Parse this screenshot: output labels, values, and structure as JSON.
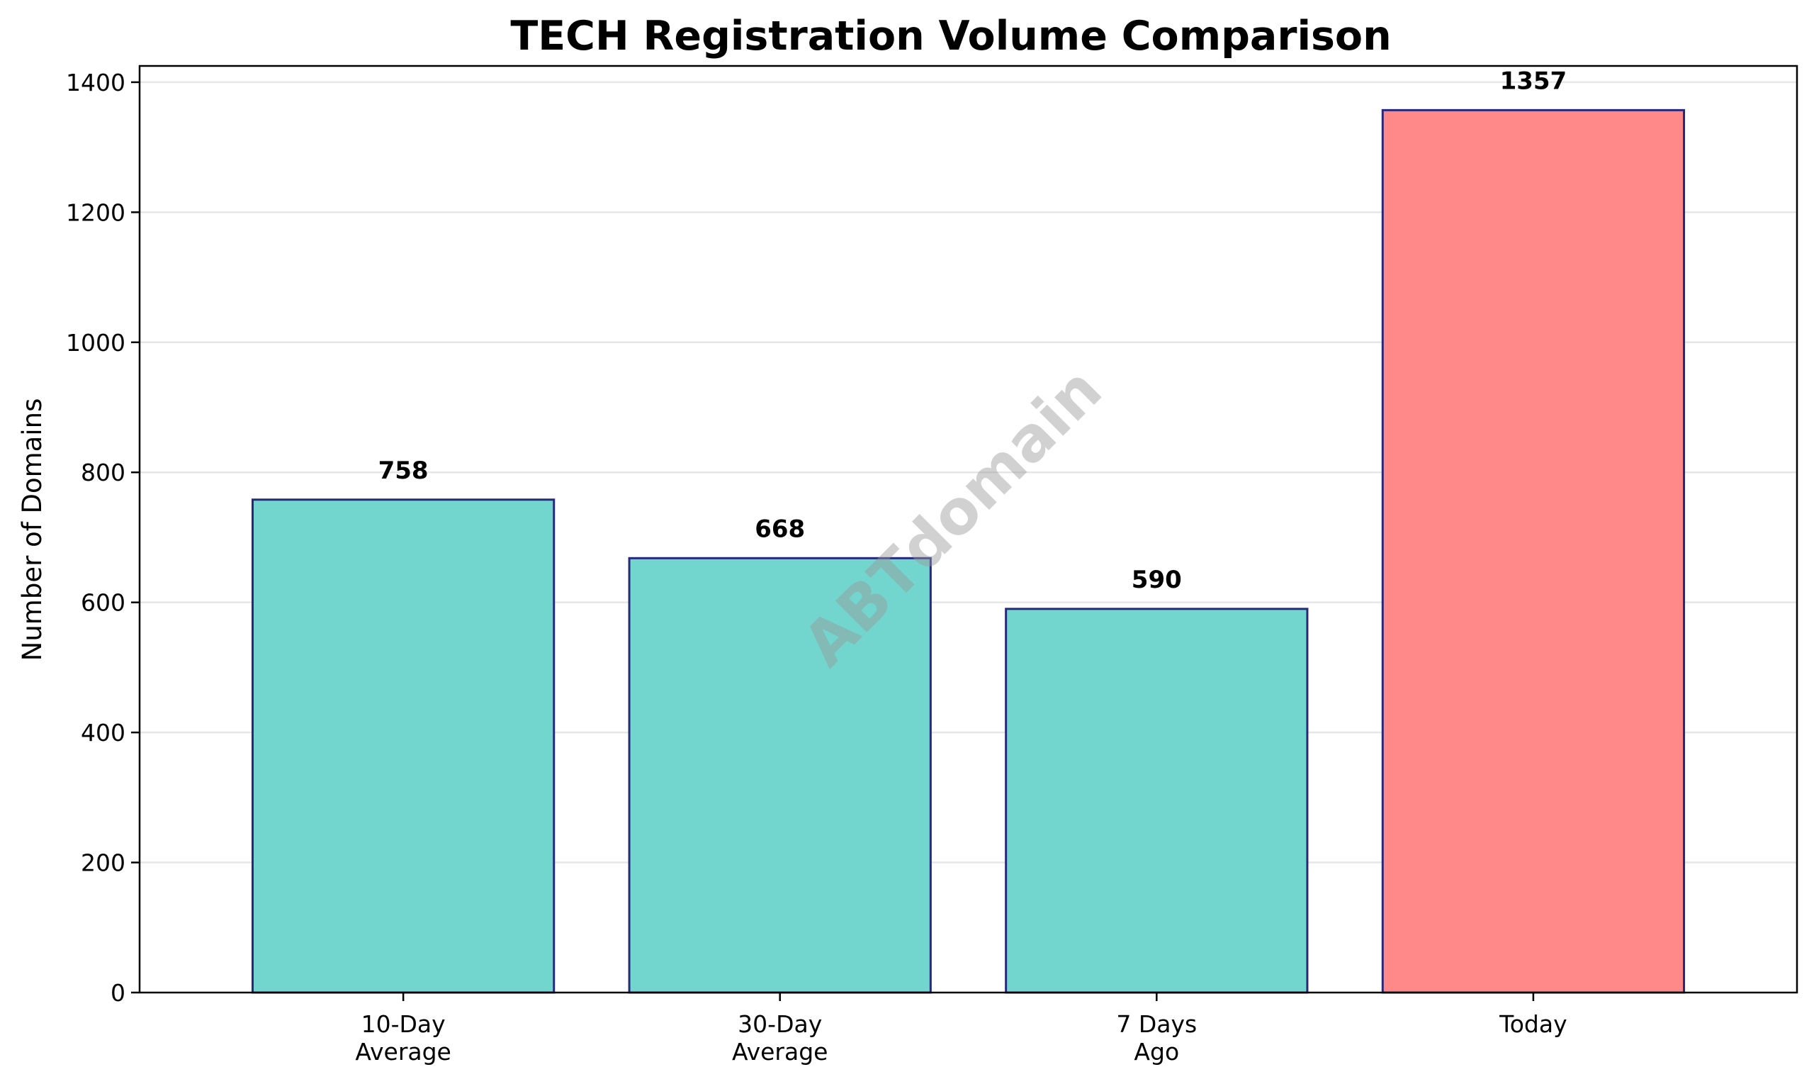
{
  "chart_data": {
    "type": "bar",
    "title": "TECH Registration Volume Comparison",
    "xlabel": "",
    "ylabel": "Number of Domains",
    "categories": [
      [
        "10-Day",
        "Average"
      ],
      [
        "30-Day",
        "Average"
      ],
      [
        "7 Days",
        "Ago"
      ],
      [
        "Today"
      ]
    ],
    "values": [
      758,
      668,
      590,
      1357
    ],
    "value_labels": [
      "758",
      "668",
      "590",
      "1357"
    ],
    "bar_colors": [
      "#72d5ce",
      "#72d5ce",
      "#72d5ce",
      "#ff8888"
    ],
    "bar_edge_color": "#27297a",
    "ylim": [
      0,
      1425
    ],
    "yticks": [
      0,
      200,
      400,
      600,
      800,
      1000,
      1200,
      1400
    ],
    "ytick_labels": [
      "0",
      "200",
      "400",
      "600",
      "800",
      "1000",
      "1200",
      "1400"
    ],
    "grid": "y",
    "grid_color": "#e6e6e6",
    "watermark": "ABTdomain"
  }
}
